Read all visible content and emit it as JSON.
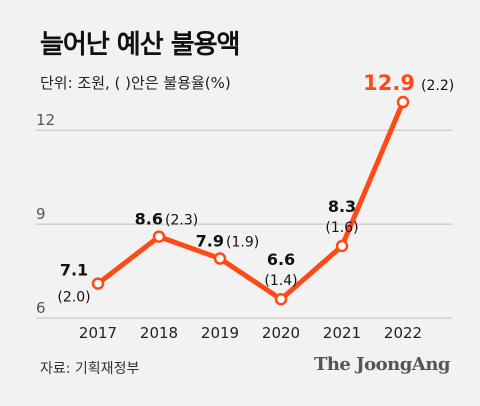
{
  "title": "늘어난 예산 불용액",
  "unit_note": "단위: 조원, (  )안은 불용율(%)",
  "source": "자료: 기획재정부",
  "logo_text": "The JoongAng",
  "colors": {
    "line": "#ff4a17",
    "accent_text": "#ff4a17",
    "grid": "#bfbfbf",
    "background": "#f2f2f2"
  },
  "chart_data": {
    "type": "line",
    "title": "늘어난 예산 불용액",
    "xlabel": "",
    "ylabel": "",
    "categories": [
      "2017",
      "2018",
      "2019",
      "2020",
      "2021",
      "2022"
    ],
    "series": [
      {
        "values": [
          7.1,
          8.6,
          7.9,
          6.6,
          8.3,
          12.9
        ]
      }
    ],
    "value_labels": [
      "7.1",
      "8.6",
      "7.9",
      "6.6",
      "8.3",
      "12.9"
    ],
    "rate_labels": [
      "(2.0)",
      "(2.3)",
      "(1.9)",
      "(1.4)",
      "(1.6)",
      "(2.2)"
    ],
    "yticks": [
      6,
      9,
      12
    ],
    "ytick_labels": [
      "6",
      "9",
      "12"
    ],
    "ylim": [
      6,
      12.9
    ],
    "grid": true,
    "legend": "none"
  }
}
